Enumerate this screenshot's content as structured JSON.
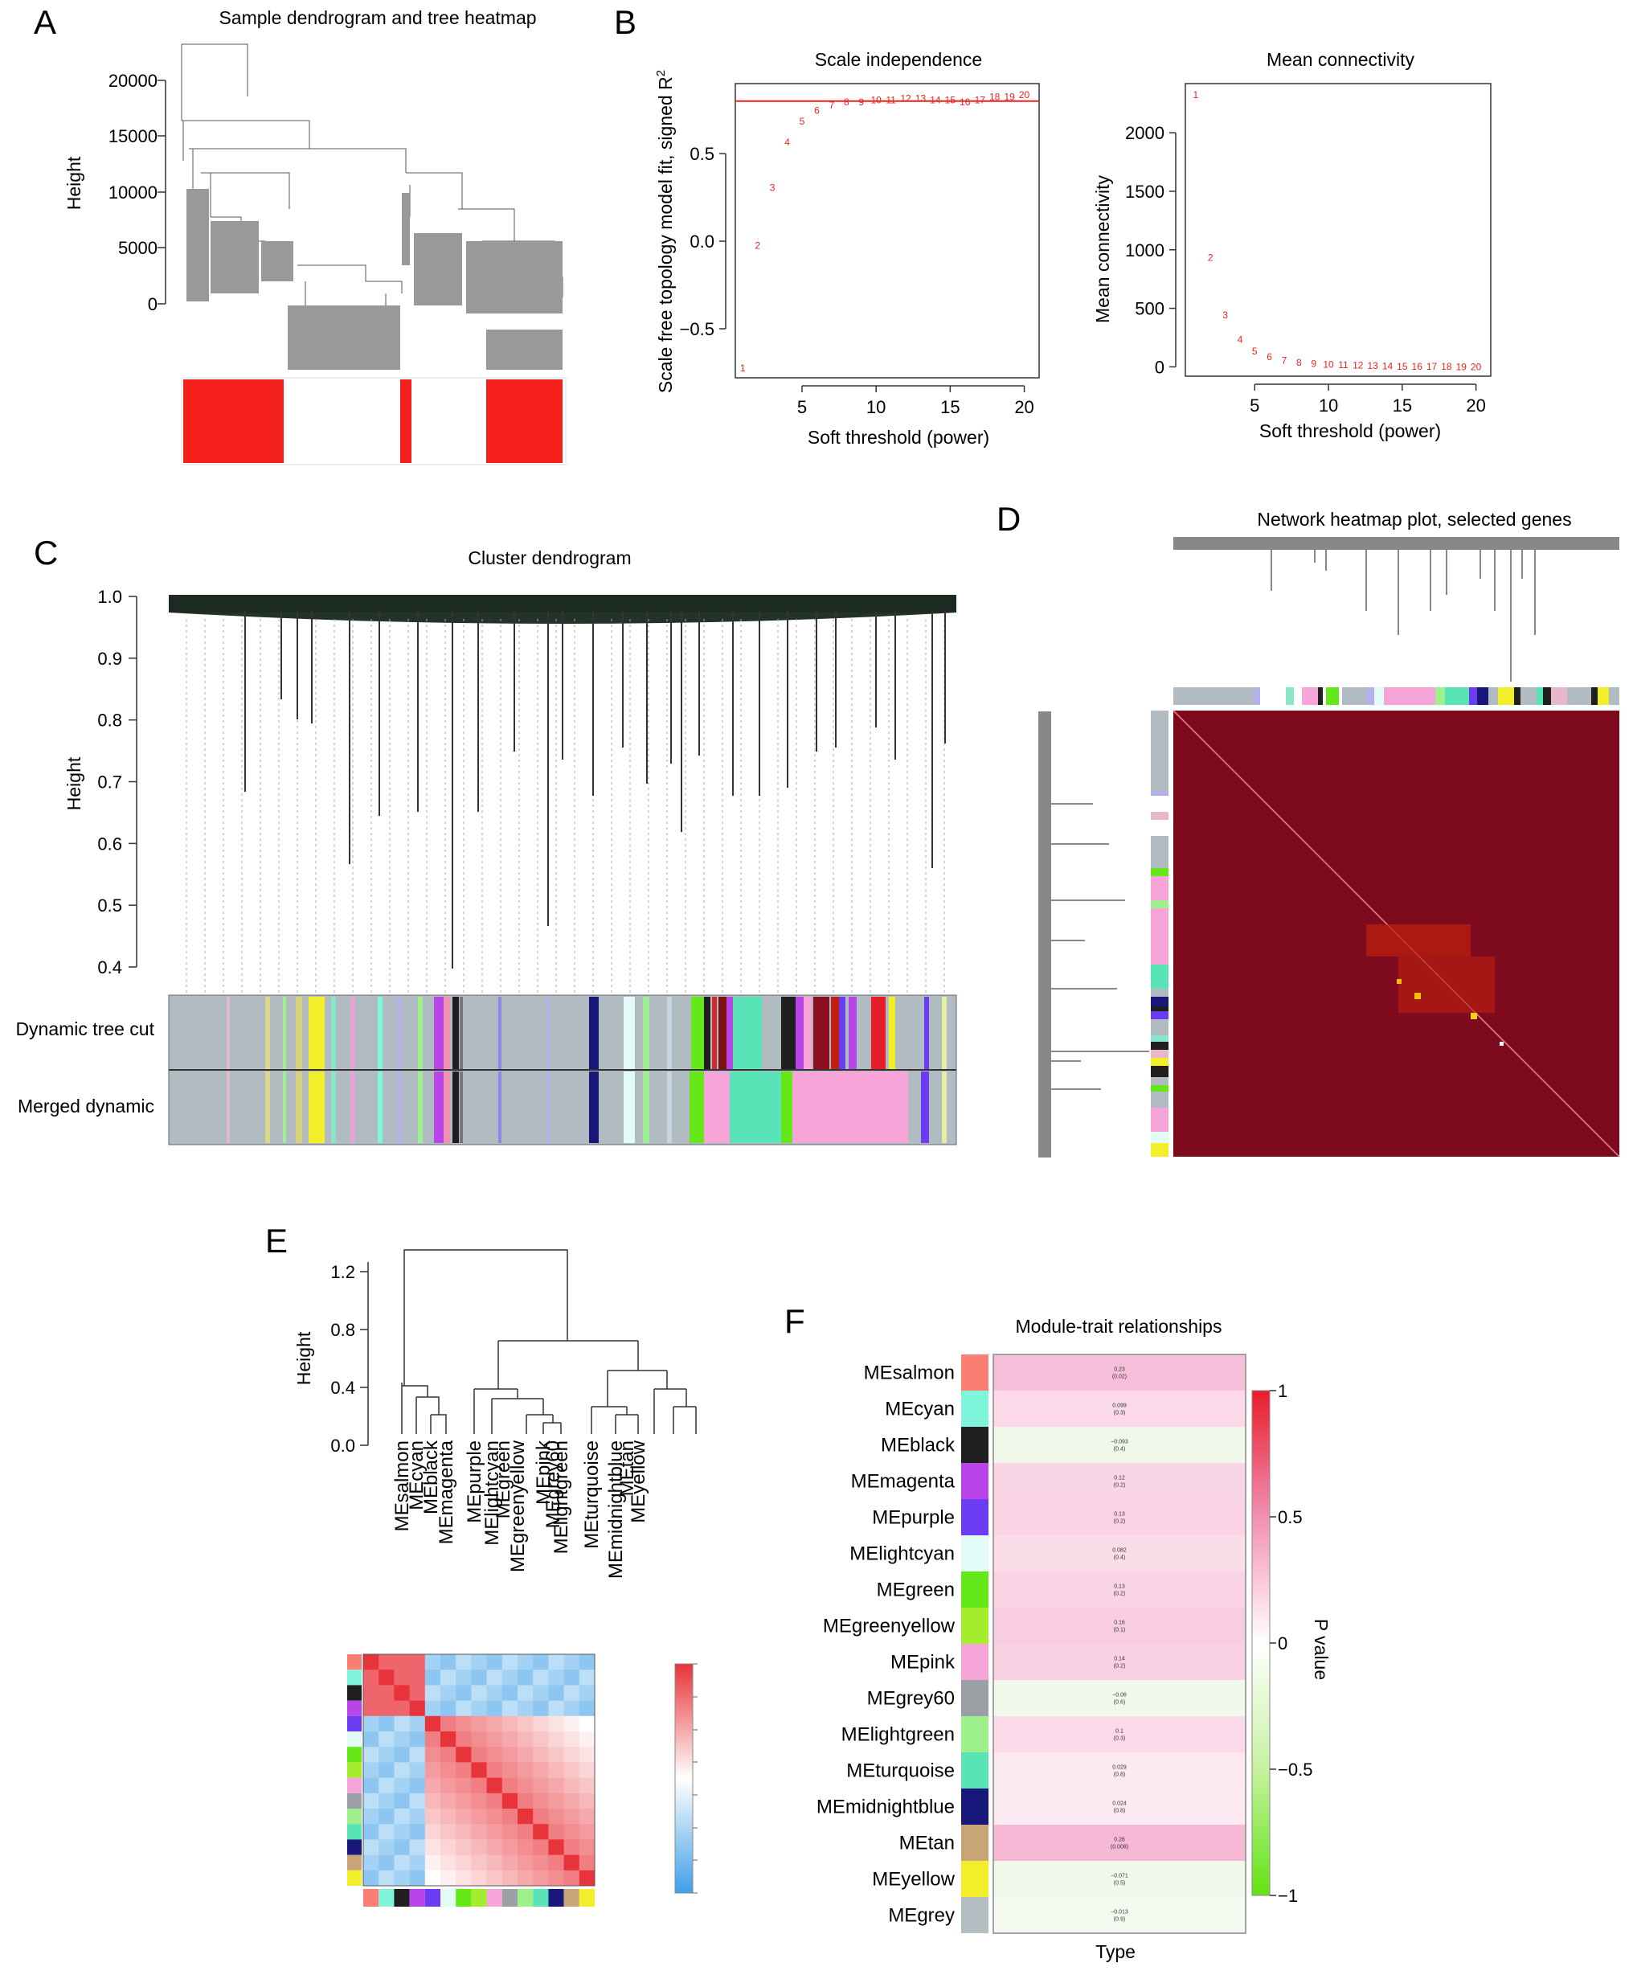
{
  "panels": {
    "A": {
      "letter": "A",
      "title": "Sample dendrogram and tree heatmap",
      "ylabel": "Height",
      "yticks": [
        "0",
        "5000",
        "10000",
        "15000",
        "20000"
      ]
    },
    "B": {
      "letter": "B"
    },
    "C": {
      "letter": "C",
      "title": "Cluster dendrogram",
      "ylabel": "Height",
      "yticks": [
        "0.4",
        "0.5",
        "0.6",
        "0.7",
        "0.8",
        "0.9",
        "1.0"
      ],
      "row1": "Dynamic tree cut",
      "row2": "Merged dynamic"
    },
    "D": {
      "letter": "D",
      "title": "Network heatmap plot, selected genes"
    },
    "E": {
      "letter": "E",
      "ylabel": "Height",
      "yticks": [
        "0.0",
        "0.4",
        "0.8",
        "1.2"
      ]
    },
    "F": {
      "letter": "F",
      "title": "Module-trait relationships",
      "xlabel": "Type",
      "legend_label": "P value",
      "legend_ticks": [
        "1",
        "0.5",
        "0",
        "−0.5",
        "−1"
      ]
    }
  },
  "chart_data": [
    {
      "type": "scatter",
      "title": "Scale independence",
      "xlabel": "Soft threshold (power)",
      "ylabel": "Scale free topology model fit, signed R",
      "ylabel_sup": "2",
      "x": [
        1,
        2,
        3,
        4,
        5,
        6,
        7,
        8,
        9,
        10,
        11,
        12,
        13,
        14,
        15,
        16,
        17,
        18,
        19,
        20
      ],
      "y": [
        -0.72,
        -0.02,
        0.31,
        0.57,
        0.69,
        0.75,
        0.78,
        0.8,
        0.8,
        0.81,
        0.81,
        0.82,
        0.82,
        0.81,
        0.81,
        0.8,
        0.81,
        0.83,
        0.83,
        0.84
      ],
      "xlim": [
        0.5,
        21
      ],
      "ylim": [
        -0.78,
        0.9
      ],
      "xticks": [
        5,
        10,
        15,
        20
      ],
      "yticks": [
        -0.5,
        0.0,
        0.5
      ],
      "ytick_labels": [
        "−0.5",
        "0.0",
        "0.5"
      ],
      "hline": 0.8,
      "color": "#e8241e"
    },
    {
      "type": "scatter",
      "title": "Mean connectivity",
      "xlabel": "Soft threshold (power)",
      "ylabel": "Mean connectivity",
      "x": [
        1,
        2,
        3,
        4,
        5,
        6,
        7,
        8,
        9,
        10,
        11,
        12,
        13,
        14,
        15,
        16,
        17,
        18,
        19,
        20
      ],
      "y": [
        2330,
        940,
        450,
        240,
        140,
        90,
        62,
        45,
        35,
        28,
        22,
        18,
        15,
        13,
        11,
        10,
        9,
        8,
        7,
        6
      ],
      "xlim": [
        0.3,
        21
      ],
      "ylim": [
        -80,
        2420
      ],
      "xticks": [
        5,
        10,
        15,
        20
      ],
      "yticks": [
        0,
        500,
        1000,
        1500,
        2000
      ],
      "color": "#e8241e"
    },
    {
      "type": "heatmap",
      "title": "Module-trait relationships",
      "xlabel": "Type",
      "rows": [
        {
          "module": "MEsalmon",
          "color": "#fa7f72",
          "corr": "0.23",
          "p": "(0.02)"
        },
        {
          "module": "MEcyan",
          "color": "#7ff5dc",
          "corr": "0.099",
          "p": "(0.3)"
        },
        {
          "module": "MEblack",
          "color": "#1f1f1f",
          "corr": "−0.093",
          "p": "(0.4)"
        },
        {
          "module": "MEmagenta",
          "color": "#b845e8",
          "corr": "0.12",
          "p": "(0.2)"
        },
        {
          "module": "MEpurple",
          "color": "#6b3cf2",
          "corr": "0.13",
          "p": "(0.2)"
        },
        {
          "module": "MElightcyan",
          "color": "#e3fbf6",
          "corr": "0.082",
          "p": "(0.4)"
        },
        {
          "module": "MEgreen",
          "color": "#64e817",
          "corr": "0.13",
          "p": "(0.2)"
        },
        {
          "module": "MEgreenyellow",
          "color": "#a4ec2e",
          "corr": "0.16",
          "p": "(0.1)"
        },
        {
          "module": "MEpink",
          "color": "#f7a4d8",
          "corr": "0.14",
          "p": "(0.2)"
        },
        {
          "module": "MEgrey60",
          "color": "#9aa0a3",
          "corr": "−0.06",
          "p": "(0.6)"
        },
        {
          "module": "MElightgreen",
          "color": "#9ef08a",
          "corr": "0.1",
          "p": "(0.3)"
        },
        {
          "module": "MEturquoise",
          "color": "#58e4b6",
          "corr": "0.029",
          "p": "(0.8)"
        },
        {
          "module": "MEmidnightblue",
          "color": "#17187a",
          "corr": "0.024",
          "p": "(0.8)"
        },
        {
          "module": "MEtan",
          "color": "#c9a476",
          "corr": "0.26",
          "p": "(0.008)"
        },
        {
          "module": "MEyellow",
          "color": "#f2ef2a",
          "corr": "−0.071",
          "p": "(0.5)"
        },
        {
          "module": "MEgrey",
          "color": "#b3bdc2",
          "corr": "−0.013",
          "p": "(0.9)"
        }
      ],
      "legend_range": [
        -1,
        1
      ]
    },
    {
      "type": "heatmap",
      "title": "",
      "eigengene_order": [
        "MEsalmon",
        "MEcyan",
        "MEblack",
        "MEmagenta",
        "MEpurple",
        "MElightcyan",
        "MEgreen",
        "MEgreenyellow",
        "MEpink",
        "MEgrey60",
        "MElightgreen",
        "MEturquoise",
        "MEmidnightblue",
        "MEtan",
        "MEyellow"
      ],
      "row_colors": [
        "#fa7f72",
        "#7ff5dc",
        "#1f1f1f",
        "#b845e8",
        "#6b3cf2",
        "#e3fbf6",
        "#64e817",
        "#a4ec2e",
        "#f7a4d8",
        "#9aa0a3",
        "#9ef08a",
        "#58e4b6",
        "#17187a",
        "#c9a476",
        "#f2ef2a"
      ],
      "value_range": [
        -1,
        1
      ]
    }
  ]
}
